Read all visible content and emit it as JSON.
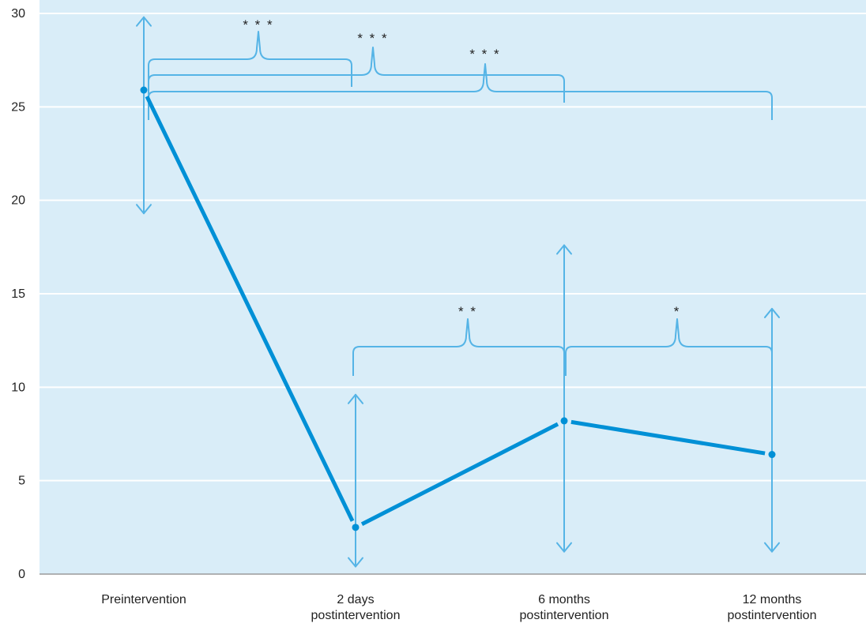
{
  "colors": {
    "background": "#d9edf8",
    "gridline": "#ffffff",
    "axis": "#9a9a9a",
    "line": "#0090d6",
    "error_bar": "#55b4e6",
    "bracket": "#55b4e6",
    "text": "#222222"
  },
  "chart_data": {
    "type": "line",
    "title": "",
    "xlabel": "",
    "ylabel": "",
    "ylim": [
      0,
      30
    ],
    "yticks": [
      "0",
      "5",
      "10",
      "15",
      "20",
      "25",
      "30"
    ],
    "grid": true,
    "categories": [
      [
        "Preintervention"
      ],
      [
        "2 days",
        "postintervention"
      ],
      [
        "6 months",
        "postintervention"
      ],
      [
        "12 months",
        "postintervention"
      ]
    ],
    "values": [
      25.9,
      2.5,
      8.2,
      6.4
    ],
    "error_low": [
      19.3,
      0.4,
      1.2,
      1.2
    ],
    "error_high": [
      29.8,
      9.6,
      17.6,
      14.2
    ],
    "significance": [
      {
        "from": 0,
        "to": 1,
        "label": "* * *"
      },
      {
        "from": 0,
        "to": 2,
        "label": "* * *"
      },
      {
        "from": 0,
        "to": 3,
        "label": "* * *"
      },
      {
        "from": 1,
        "to": 2,
        "label": "* *"
      },
      {
        "from": 2,
        "to": 3,
        "label": "*"
      }
    ]
  }
}
